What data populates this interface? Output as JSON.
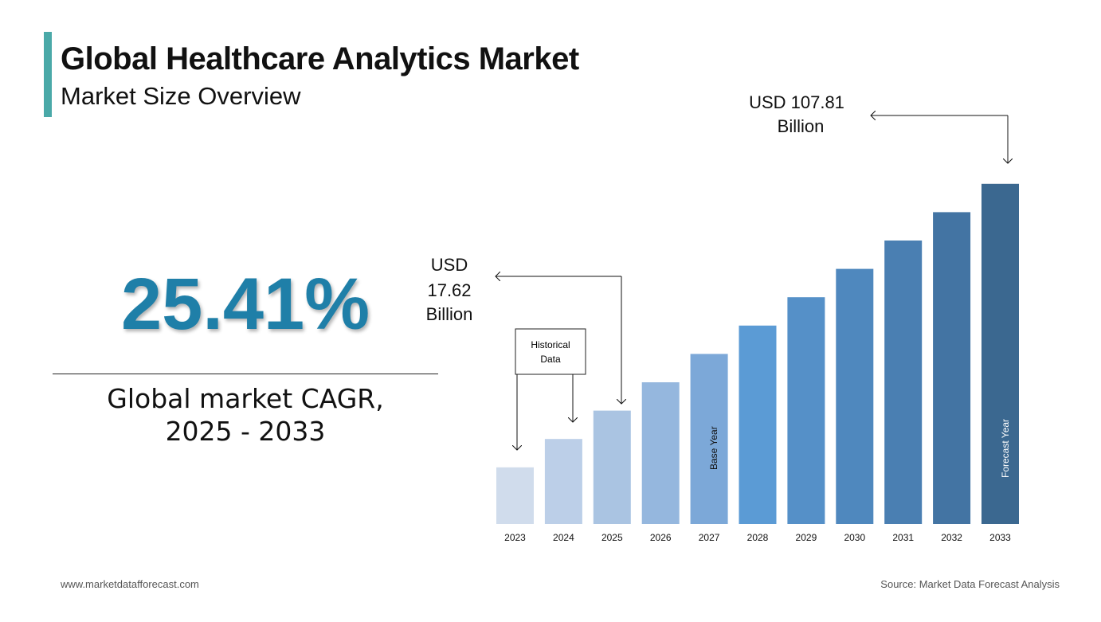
{
  "header": {
    "title": "Global Healthcare Analytics Market",
    "subtitle": "Market Size Overview"
  },
  "kpi": {
    "value": "25.41%",
    "label_line1": "Global market CAGR,",
    "label_line2": "2025 - 2033"
  },
  "footer": {
    "website": "www.marketdatafforecast.com",
    "source": "Source: Market Data Forecast Analysis"
  },
  "chart_data": {
    "type": "bar",
    "categories": [
      "2023",
      "2024",
      "2025",
      "2026",
      "2027",
      "2028",
      "2029",
      "2030",
      "2031",
      "2032",
      "2033"
    ],
    "relative_values": [
      2,
      3,
      4,
      5,
      6,
      7,
      8,
      9,
      10,
      11,
      12
    ],
    "colors": [
      "#d0dcec",
      "#bccfe8",
      "#aac4e2",
      "#95b7de",
      "#7ca8d8",
      "#5b9bd5",
      "#5590c8",
      "#4f88be",
      "#4a7fb2",
      "#4374a3",
      "#3b6890"
    ],
    "annotations": {
      "start": {
        "line1": "USD",
        "line2": "17.62",
        "line3": "Billion",
        "year": "2025"
      },
      "end": {
        "line1": "USD 107.81",
        "line2": "Billion",
        "year": "2033"
      },
      "historical": {
        "line1": "Historical",
        "line2": "Data"
      },
      "base_year": "Base Year",
      "forecast_year": "Forecast Year"
    },
    "unit": "USD Billion"
  }
}
